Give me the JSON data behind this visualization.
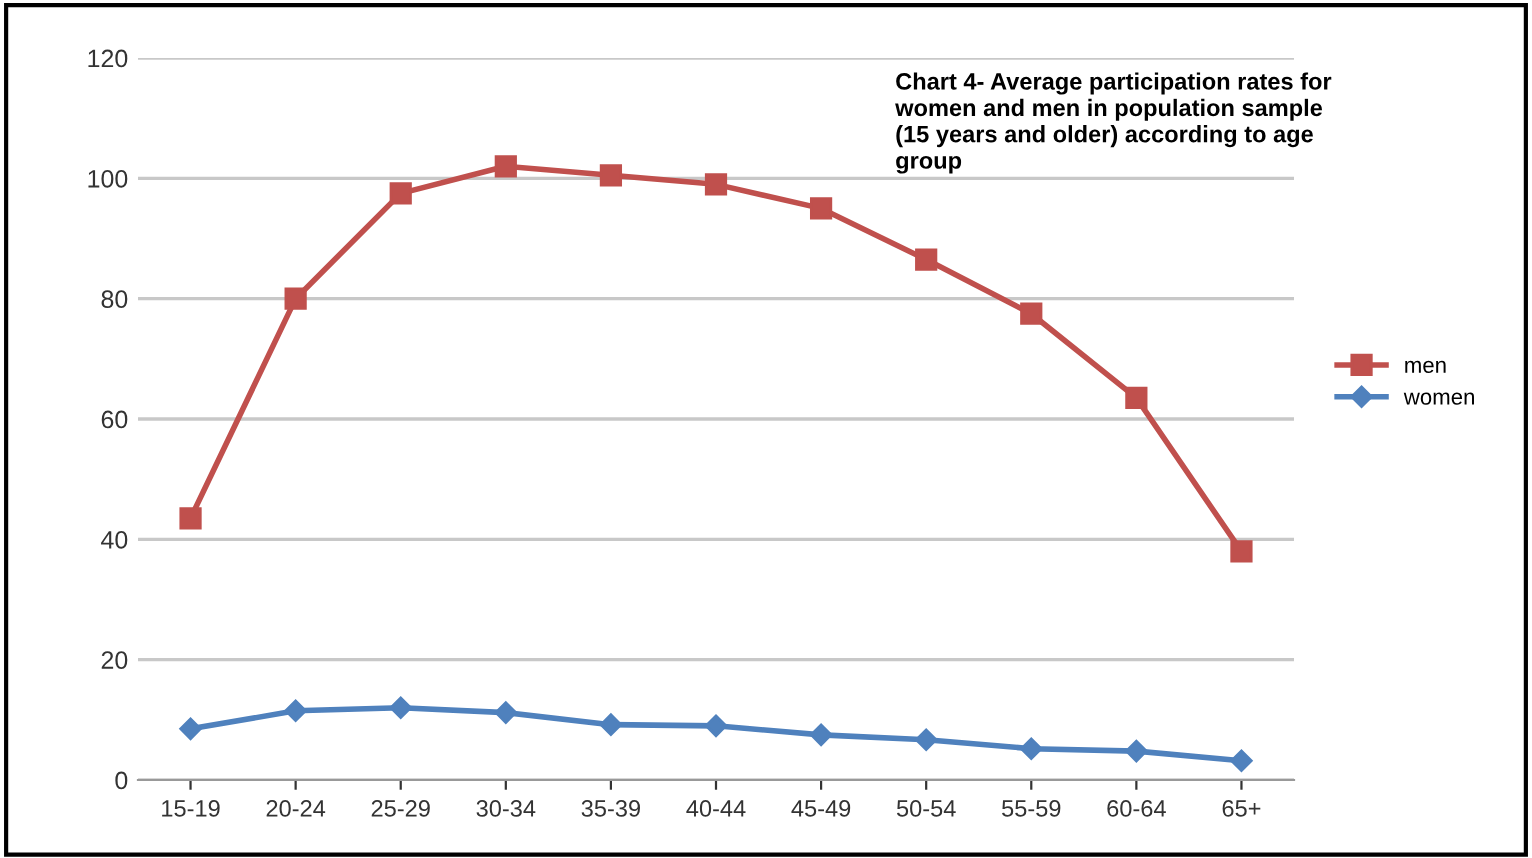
{
  "chart_data": {
    "type": "line",
    "title": "Chart 4- Average participation rates for\nwomen and men in population sample\n(15 years and older) according to age\ngroup",
    "categories": [
      "15-19",
      "20-24",
      "25-29",
      "30-34",
      "35-39",
      "40-44",
      "45-49",
      "50-54",
      "55-59",
      "60-64",
      "65+"
    ],
    "series": [
      {
        "name": "men",
        "color": "#c0504d",
        "marker": "square",
        "values": [
          43.5,
          80,
          97.5,
          102,
          100.5,
          99,
          95,
          86.5,
          77.5,
          63.5,
          38
        ]
      },
      {
        "name": "women",
        "color": "#4f81bd",
        "marker": "diamond",
        "values": [
          8.5,
          11.5,
          12,
          11.2,
          9.2,
          9,
          7.5,
          6.7,
          5.2,
          4.8,
          3.2
        ]
      }
    ],
    "ylim": [
      0,
      120
    ],
    "yticks": [
      0,
      20,
      40,
      60,
      80,
      100,
      120
    ],
    "grid": "y",
    "legend": "right"
  }
}
